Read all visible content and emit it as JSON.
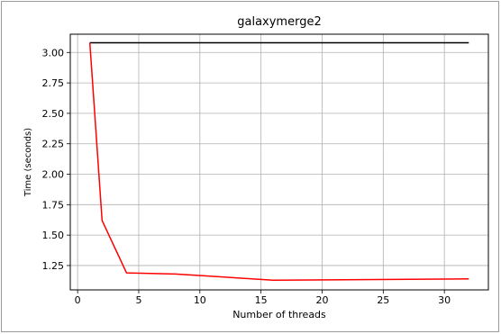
{
  "chart_data": {
    "type": "line",
    "title": "galaxymerge2",
    "xlabel": "Number of threads",
    "ylabel": "Time (seconds)",
    "xlim": [
      -0.6,
      33.6
    ],
    "ylim": [
      1.05,
      3.15
    ],
    "xticks": [
      0,
      5,
      10,
      15,
      20,
      25,
      30
    ],
    "yticks": [
      1.25,
      1.5,
      1.75,
      2.0,
      2.25,
      2.5,
      2.75,
      3.0
    ],
    "xtick_labels": [
      "0",
      "5",
      "10",
      "15",
      "20",
      "25",
      "30"
    ],
    "ytick_labels": [
      "1.25",
      "1.50",
      "1.75",
      "2.00",
      "2.25",
      "2.50",
      "2.75",
      "3.00"
    ],
    "grid": true,
    "series": [
      {
        "color": "#000000",
        "x": [
          1,
          32
        ],
        "y": [
          3.08,
          3.08
        ]
      },
      {
        "color": "#ff0000",
        "x": [
          1,
          2,
          4,
          8,
          16,
          32
        ],
        "y": [
          3.08,
          1.62,
          1.19,
          1.18,
          1.13,
          1.14
        ]
      }
    ]
  }
}
